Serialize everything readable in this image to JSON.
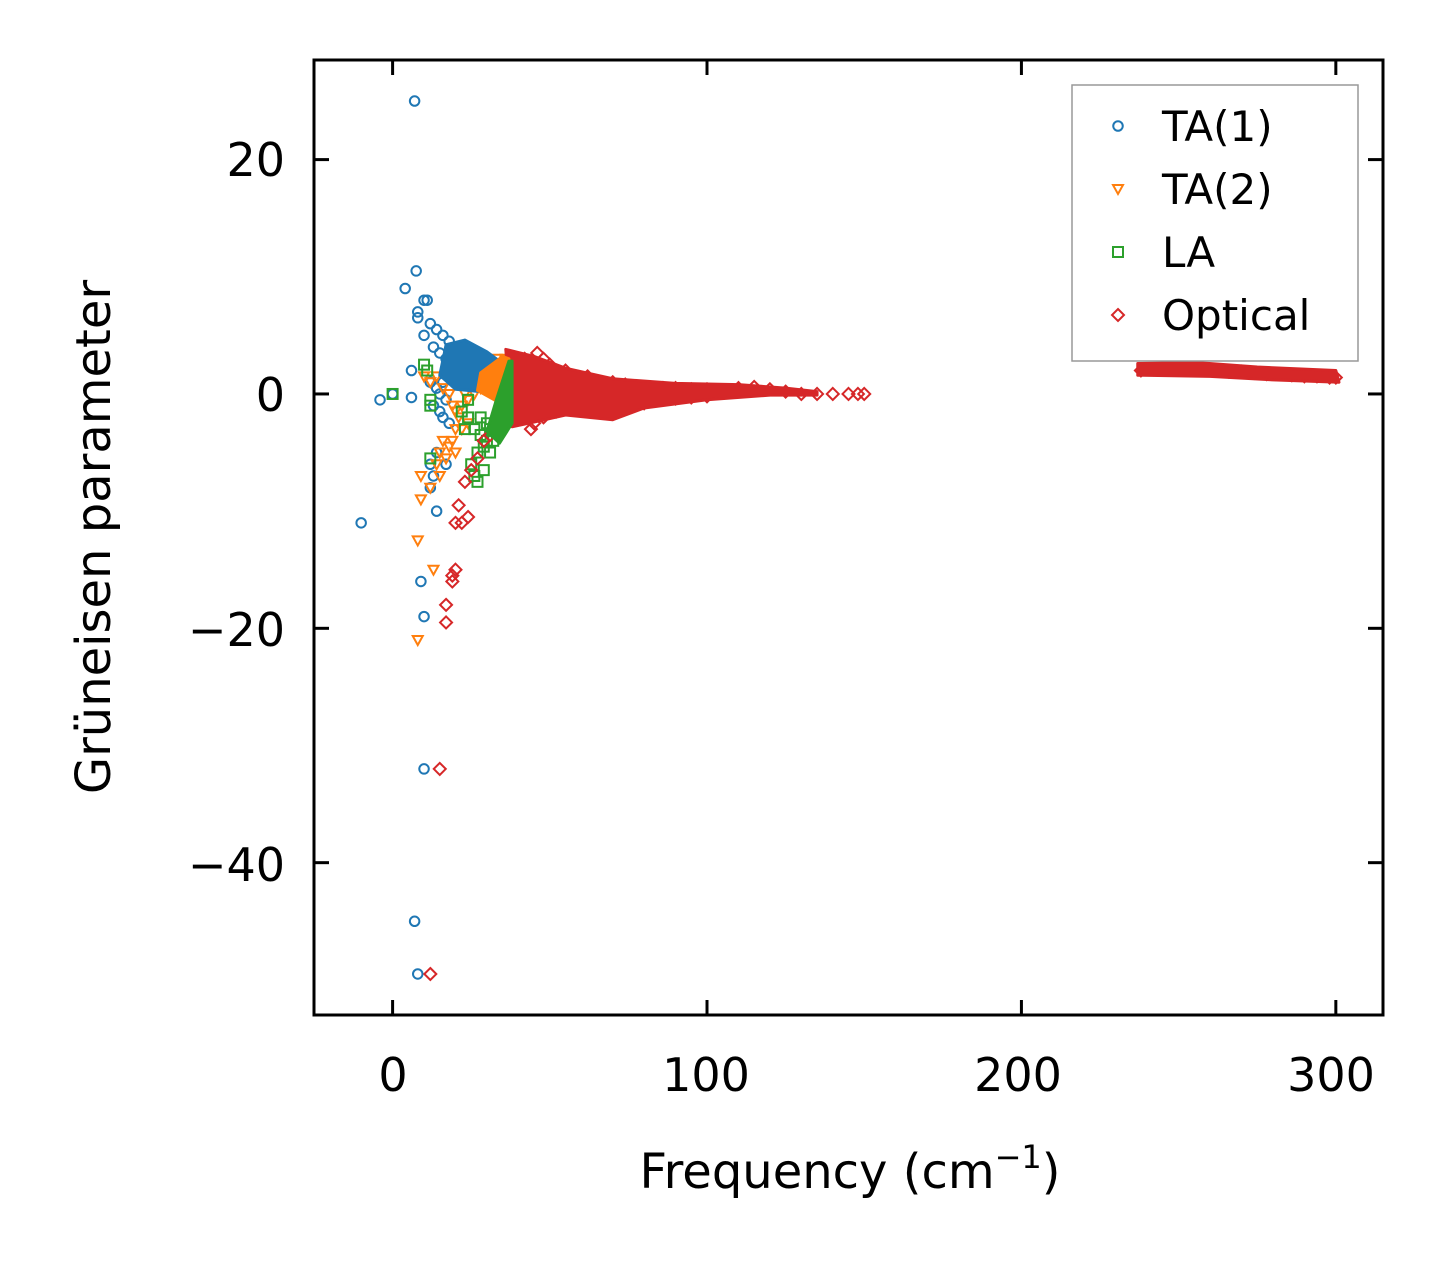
{
  "chart_data": {
    "type": "scatter",
    "xlabel": "Frequency (cm",
    "xlabel_sup": "−1",
    "xlabel_suffix": ")",
    "ylabel": "Grüneisen parameter",
    "xlim": [
      -25,
      315
    ],
    "ylim": [
      -53,
      28.5
    ],
    "xticks": [
      0,
      100,
      200,
      300
    ],
    "yticks": [
      20,
      0,
      -20,
      -40
    ],
    "xtick_labels": [
      "0",
      "100",
      "200",
      "300"
    ],
    "ytick_labels": [
      "20",
      "0",
      "−20",
      "−40"
    ],
    "legend_position": "top-right",
    "series": [
      {
        "name": "TA(1)",
        "marker": "circle",
        "color": "#1f77b4",
        "points": [
          [
            7,
            25
          ],
          [
            7.5,
            10.5
          ],
          [
            4,
            9
          ],
          [
            8,
            7
          ],
          [
            10,
            8
          ],
          [
            11,
            8
          ],
          [
            8,
            6.5
          ],
          [
            12,
            6
          ],
          [
            14,
            5.5
          ],
          [
            16,
            5
          ],
          [
            18,
            4.5
          ],
          [
            10,
            5
          ],
          [
            13,
            4
          ],
          [
            15,
            3.5
          ],
          [
            17,
            3
          ],
          [
            19,
            3.5
          ],
          [
            21,
            4
          ],
          [
            23,
            4
          ],
          [
            25,
            3.5
          ],
          [
            27,
            3
          ],
          [
            29,
            2.5
          ],
          [
            31,
            2
          ],
          [
            33,
            2.5
          ],
          [
            22,
            3
          ],
          [
            24,
            2.5
          ],
          [
            26,
            2
          ],
          [
            28,
            1.5
          ],
          [
            30,
            1
          ],
          [
            20,
            2
          ],
          [
            18,
            1.5
          ],
          [
            16,
            1
          ],
          [
            14,
            0.5
          ],
          [
            12,
            1
          ],
          [
            6,
            2
          ],
          [
            15,
            0
          ],
          [
            17,
            -0.5
          ],
          [
            13,
            -1
          ],
          [
            16,
            -2
          ],
          [
            18,
            -2.5
          ],
          [
            15,
            -1.5
          ],
          [
            14,
            -5
          ],
          [
            17,
            -6
          ],
          [
            12,
            -6
          ],
          [
            13,
            -7
          ],
          [
            12,
            -8
          ],
          [
            14,
            -10
          ],
          [
            -10,
            -11
          ],
          [
            -4,
            -0.5
          ],
          [
            0,
            0
          ],
          [
            6,
            -0.3
          ],
          [
            9,
            -16
          ],
          [
            10,
            -19
          ],
          [
            10,
            -32
          ],
          [
            7,
            -45
          ],
          [
            8,
            -49.5
          ],
          [
            25,
            1.5
          ],
          [
            27,
            2.2
          ],
          [
            32,
            1.8
          ],
          [
            29,
            3.2
          ],
          [
            20,
            1.2
          ],
          [
            23,
            1.8
          ],
          [
            26,
            2.8
          ],
          [
            28,
            2.4
          ],
          [
            30,
            2
          ],
          [
            24,
            3.3
          ],
          [
            21,
            2.6
          ]
        ]
      },
      {
        "name": "TA(2)",
        "marker": "triangle-down",
        "color": "#ff7f0e",
        "points": [
          [
            10,
            1.5
          ],
          [
            12,
            1
          ],
          [
            14,
            1.5
          ],
          [
            16,
            0.5
          ],
          [
            18,
            0
          ],
          [
            19,
            -1
          ],
          [
            20,
            -1.5
          ],
          [
            21,
            -2
          ],
          [
            22,
            -1
          ],
          [
            24,
            -0.5
          ],
          [
            26,
            0
          ],
          [
            28,
            0.5
          ],
          [
            30,
            1
          ],
          [
            32,
            1.5
          ],
          [
            34,
            2
          ],
          [
            35,
            2.5
          ],
          [
            33,
            3
          ],
          [
            36,
            3
          ],
          [
            25,
            1
          ],
          [
            27,
            1.5
          ],
          [
            29,
            2
          ],
          [
            31,
            2.5
          ],
          [
            23,
            0
          ],
          [
            20,
            -3
          ],
          [
            19,
            -4
          ],
          [
            18,
            -4.5
          ],
          [
            16,
            -4
          ],
          [
            15,
            -5
          ],
          [
            17,
            -5.5
          ],
          [
            14,
            -6
          ],
          [
            15,
            -7
          ],
          [
            12,
            -8
          ],
          [
            9,
            -7
          ],
          [
            9,
            -9
          ],
          [
            8,
            -12.5
          ],
          [
            13,
            -15
          ],
          [
            8,
            -21
          ],
          [
            20,
            -5
          ],
          [
            22,
            -3
          ],
          [
            24,
            -2.5
          ]
        ]
      },
      {
        "name": "LA",
        "marker": "square",
        "color": "#2ca02c",
        "points": [
          [
            0,
            0
          ],
          [
            10,
            2.5
          ],
          [
            11,
            2
          ],
          [
            12,
            -0.5
          ],
          [
            12,
            -1
          ],
          [
            12,
            -5.5
          ],
          [
            22,
            -1.5
          ],
          [
            24,
            -2
          ],
          [
            26,
            -3
          ],
          [
            28,
            -3.5
          ],
          [
            30,
            -4
          ],
          [
            32,
            -4
          ],
          [
            34,
            -3
          ],
          [
            36,
            -2
          ],
          [
            37,
            0
          ],
          [
            37,
            1
          ],
          [
            37,
            2
          ],
          [
            36,
            -1
          ],
          [
            33,
            -2.5
          ],
          [
            31,
            -3
          ],
          [
            29,
            -4.5
          ],
          [
            27,
            -5
          ],
          [
            25,
            -6
          ],
          [
            26,
            -7
          ],
          [
            27,
            -7.5
          ],
          [
            29,
            -6.5
          ],
          [
            31,
            -5
          ],
          [
            28,
            -2
          ],
          [
            30,
            -2.5
          ],
          [
            35,
            0
          ],
          [
            34,
            1.5
          ],
          [
            24,
            -0.5
          ],
          [
            23,
            -3
          ]
        ]
      },
      {
        "name": "Optical",
        "marker": "diamond",
        "color": "#d62728",
        "points": [
          [
            12,
            -49.5
          ],
          [
            15,
            -32
          ],
          [
            17,
            -18
          ],
          [
            17,
            -19.5
          ],
          [
            19,
            -15.5
          ],
          [
            19,
            -16
          ],
          [
            20,
            -15
          ],
          [
            20,
            -11
          ],
          [
            22,
            -11
          ],
          [
            24,
            -10.5
          ],
          [
            21,
            -9.5
          ],
          [
            23,
            -7.5
          ],
          [
            25,
            -6.5
          ],
          [
            27,
            -5.5
          ],
          [
            29,
            -4
          ],
          [
            31,
            -3.5
          ],
          [
            33,
            -2.5
          ],
          [
            35,
            -2
          ],
          [
            44,
            -3
          ],
          [
            40,
            2
          ],
          [
            42,
            3
          ],
          [
            46,
            3.5
          ],
          [
            48,
            3
          ],
          [
            50,
            2.5
          ],
          [
            52,
            2
          ],
          [
            55,
            2
          ],
          [
            58,
            1.5
          ],
          [
            62,
            1.5
          ],
          [
            66,
            1
          ],
          [
            70,
            1
          ],
          [
            74,
            0.8
          ],
          [
            78,
            0.6
          ],
          [
            82,
            0.5
          ],
          [
            86,
            0.5
          ],
          [
            90,
            0.5
          ],
          [
            95,
            0.4
          ],
          [
            100,
            0.4
          ],
          [
            105,
            0.3
          ],
          [
            110,
            0.5
          ],
          [
            115,
            0.6
          ],
          [
            120,
            0.4
          ],
          [
            125,
            0.2
          ],
          [
            130,
            0
          ],
          [
            135,
            0
          ],
          [
            140,
            0
          ],
          [
            145,
            0
          ],
          [
            148,
            0
          ],
          [
            150,
            0
          ],
          [
            40,
            -1
          ],
          [
            42,
            -2
          ],
          [
            45,
            -2.5
          ],
          [
            48,
            -2
          ],
          [
            52,
            -1.5
          ],
          [
            56,
            -1
          ],
          [
            60,
            -1
          ],
          [
            65,
            -1.2
          ],
          [
            70,
            -1.5
          ],
          [
            75,
            -1
          ],
          [
            80,
            -0.8
          ],
          [
            85,
            -0.5
          ],
          [
            90,
            -0.4
          ],
          [
            95,
            -0.3
          ],
          [
            100,
            -0.2
          ],
          [
            238,
            2
          ],
          [
            242,
            2.1
          ],
          [
            246,
            2.2
          ],
          [
            250,
            2.3
          ],
          [
            254,
            2.2
          ],
          [
            258,
            2.1
          ],
          [
            262,
            2
          ],
          [
            266,
            1.9
          ],
          [
            270,
            1.9
          ],
          [
            274,
            1.8
          ],
          [
            278,
            1.7
          ],
          [
            282,
            1.7
          ],
          [
            286,
            1.6
          ],
          [
            290,
            1.5
          ],
          [
            294,
            1.5
          ],
          [
            298,
            1.4
          ],
          [
            300,
            1.4
          ]
        ]
      }
    ]
  }
}
